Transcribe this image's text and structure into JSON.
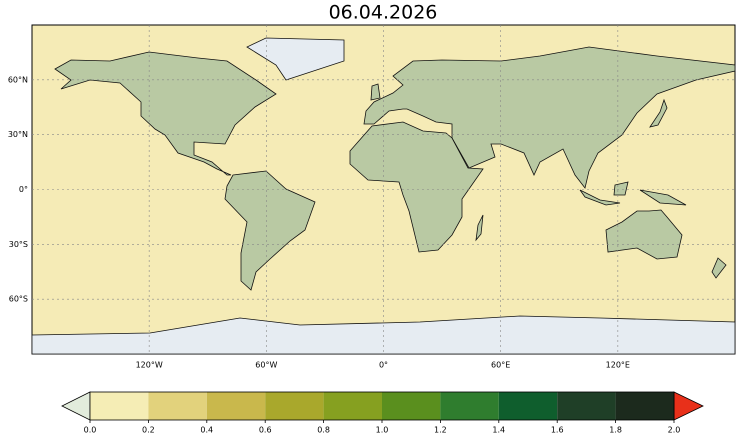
{
  "title": "06.04.2026",
  "map": {
    "xlim": [
      -180,
      180
    ],
    "ylim": [
      -90,
      90
    ],
    "lat_ticks": [
      {
        "value": 60,
        "label": "60°N"
      },
      {
        "value": 30,
        "label": "30°N"
      },
      {
        "value": 0,
        "label": "0°"
      },
      {
        "value": -30,
        "label": "30°S"
      },
      {
        "value": -60,
        "label": "60°S"
      }
    ],
    "lon_ticks": [
      {
        "value": -120,
        "label": "120°W"
      },
      {
        "value": -60,
        "label": "60°W"
      },
      {
        "value": 0,
        "label": "0°"
      },
      {
        "value": 60,
        "label": "60°E"
      },
      {
        "value": 120,
        "label": "120°E"
      }
    ],
    "grid": true
  },
  "colorbar": {
    "ticks": [
      {
        "value": 0,
        "label": "0.0"
      },
      0.2,
      0.4,
      0.6,
      0.8,
      {
        "value": 1,
        "label": "1.0"
      },
      1.2,
      1.4,
      1.6,
      1.8,
      {
        "value": 2,
        "label": "2.0"
      }
    ],
    "colors": [
      "#f5edb5",
      "#e2d27c",
      "#c9b84c",
      "#a9a82c",
      "#86a020",
      "#5a8f1e",
      "#2f7d2e",
      "#0f5e2d",
      "#1f3f27",
      "#1c2a1d"
    ],
    "under_color": "#e2ecdc",
    "over_color": "#e8301a"
  }
}
